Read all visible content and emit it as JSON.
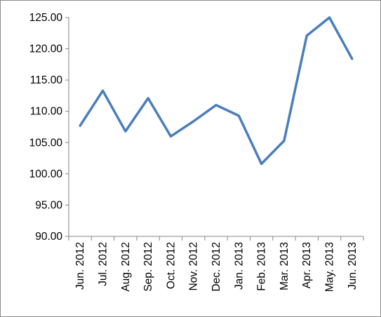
{
  "chart_data": {
    "type": "line",
    "title": "",
    "xlabel": "",
    "ylabel": "",
    "categories": [
      "Jun. 2012",
      "Jul. 2012",
      "Aug. 2012",
      "Sep. 2012",
      "Oct. 2012",
      "Nov. 2012",
      "Dec. 2012",
      "Jan. 2013",
      "Feb. 2013",
      "Mar. 2013",
      "Apr. 2013",
      "May. 2013",
      "Jun. 2013"
    ],
    "y_ticks": [
      "90.00",
      "95.00",
      "100.00",
      "105.00",
      "110.00",
      "115.00",
      "120.00",
      "125.00"
    ],
    "ylim": [
      90,
      125
    ],
    "grid": false,
    "legend": "none",
    "series": [
      {
        "color": "#4a7ebb",
        "values": [
          107.7,
          113.3,
          106.8,
          112.1,
          106.0,
          108.4,
          111.0,
          109.3,
          101.6,
          105.3,
          122.1,
          125.0,
          118.4
        ]
      }
    ]
  }
}
